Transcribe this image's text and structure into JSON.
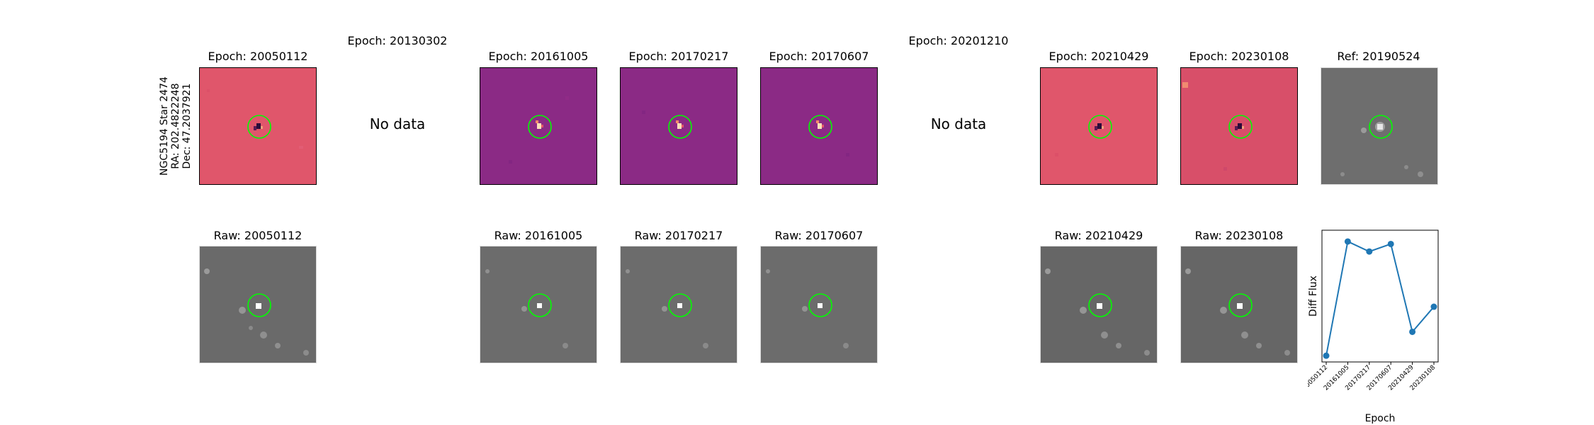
{
  "figure": {
    "object_label": {
      "line1": "NGC5194 Star 2474",
      "line2": "RA: 202.4822248",
      "line3": "Dec: 47.2037921"
    },
    "no_data_text": "No data",
    "top_titles": {
      "e1": "Epoch: 20050112",
      "e2": "Epoch: 20130302",
      "e3": "Epoch: 20161005",
      "e4": "Epoch: 20170217",
      "e5": "Epoch: 20170607",
      "e6": "Epoch: 20201210",
      "e7": "Epoch: 20210429",
      "e8": "Epoch: 20230108",
      "ref": "Ref: 20190524"
    },
    "bottom_titles": {
      "r1": "Raw: 20050112",
      "r3": "Raw: 20161005",
      "r4": "Raw: 20170217",
      "r5": "Raw: 20170607",
      "r7": "Raw: 20210429",
      "r8": "Raw: 20230108"
    },
    "colors": {
      "diff_red_bg": "#e0566b",
      "diff_purple_bg": "#8b2a85",
      "raw_gray_bg": "#6a6a6a",
      "circle": "#00ff00",
      "line": "#1f77b4"
    }
  },
  "chart_data": {
    "type": "line",
    "title": "",
    "xlabel": "Epoch",
    "ylabel": "Diff Flux",
    "categories": [
      "20050112",
      "20161005",
      "20170217",
      "20170607",
      "20210429",
      "20230108"
    ],
    "series": [
      {
        "values": [
          0.05,
          0.96,
          0.88,
          0.94,
          0.24,
          0.44
        ]
      }
    ],
    "ylim": [
      0,
      1.05
    ],
    "grid": false,
    "legend": "none"
  }
}
